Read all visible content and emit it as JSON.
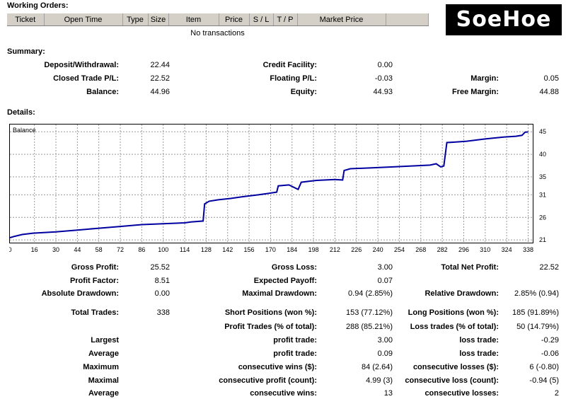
{
  "working_orders": {
    "title": "Working Orders:",
    "columns": [
      "Ticket",
      "Open Time",
      "Type",
      "Size",
      "Item",
      "Price",
      "S / L",
      "T / P",
      "Market Price",
      ""
    ],
    "empty_text": "No transactions"
  },
  "logo": {
    "text": "SoeHoe"
  },
  "summary": {
    "title": "Summary:",
    "deposit_label": "Deposit/Withdrawal:",
    "deposit_value": "22.44",
    "credit_label": "Credit Facility:",
    "credit_value": "0.00",
    "closed_label": "Closed Trade P/L:",
    "closed_value": "22.52",
    "floating_label": "Floating P/L:",
    "floating_value": "-0.03",
    "margin_label": "Margin:",
    "margin_value": "0.05",
    "balance_label": "Balance:",
    "balance_value": "44.96",
    "equity_label": "Equity:",
    "equity_value": "44.93",
    "free_margin_label": "Free Margin:",
    "free_margin_value": "44.88"
  },
  "details": {
    "title": "Details:"
  },
  "chart_data": {
    "type": "line",
    "title": "Balance",
    "series": [
      {
        "color": "#0000a0",
        "points": [
          [
            0,
            21.5
          ],
          [
            3,
            21.8
          ],
          [
            8,
            22.2
          ],
          [
            15,
            22.5
          ],
          [
            30,
            22.8
          ],
          [
            44,
            23.2
          ],
          [
            58,
            23.6
          ],
          [
            72,
            24.0
          ],
          [
            86,
            24.4
          ],
          [
            100,
            24.6
          ],
          [
            114,
            24.8
          ],
          [
            118,
            25.0
          ],
          [
            126,
            25.2
          ],
          [
            127,
            29.0
          ],
          [
            130,
            29.6
          ],
          [
            136,
            29.9
          ],
          [
            144,
            30.2
          ],
          [
            152,
            30.6
          ],
          [
            162,
            31.0
          ],
          [
            170,
            31.4
          ],
          [
            174,
            31.6
          ],
          [
            175,
            33.0
          ],
          [
            182,
            33.2
          ],
          [
            188,
            32.2
          ],
          [
            190,
            33.8
          ],
          [
            195,
            34.0
          ],
          [
            200,
            34.2
          ],
          [
            212,
            34.4
          ],
          [
            217,
            34.3
          ],
          [
            218,
            36.4
          ],
          [
            222,
            36.8
          ],
          [
            236,
            37.0
          ],
          [
            250,
            37.2
          ],
          [
            262,
            37.4
          ],
          [
            274,
            37.6
          ],
          [
            278,
            37.9
          ],
          [
            281,
            37.2
          ],
          [
            283,
            37.4
          ],
          [
            285,
            42.6
          ],
          [
            290,
            42.7
          ],
          [
            298,
            42.9
          ],
          [
            310,
            43.4
          ],
          [
            322,
            43.8
          ],
          [
            330,
            44.0
          ],
          [
            334,
            44.2
          ],
          [
            336,
            44.9
          ],
          [
            338,
            44.96
          ]
        ]
      }
    ],
    "x_ticks": [
      0,
      16,
      30,
      44,
      58,
      72,
      86,
      100,
      114,
      128,
      142,
      156,
      170,
      184,
      198,
      212,
      226,
      240,
      254,
      268,
      282,
      296,
      310,
      324,
      338
    ],
    "y_ticks": [
      21,
      26,
      31,
      35,
      40,
      45
    ],
    "xlim": [
      0,
      341
    ],
    "ylim": [
      20.4,
      46.6
    ],
    "grid": true
  },
  "stats": {
    "gross_profit_label": "Gross Profit:",
    "gross_profit_value": "25.52",
    "gross_loss_label": "Gross Loss:",
    "gross_loss_value": "3.00",
    "total_net_profit_label": "Total Net Profit:",
    "total_net_profit_value": "22.52",
    "profit_factor_label": "Profit Factor:",
    "profit_factor_value": "8.51",
    "expected_payoff_label": "Expected Payoff:",
    "expected_payoff_value": "0.07",
    "absolute_drawdown_label": "Absolute Drawdown:",
    "absolute_drawdown_value": "0.00",
    "maximal_drawdown_label": "Maximal Drawdown:",
    "maximal_drawdown_value": "0.94 (2.85%)",
    "relative_drawdown_label": "Relative Drawdown:",
    "relative_drawdown_value": "2.85% (0.94)",
    "total_trades_label": "Total Trades:",
    "total_trades_value": "338",
    "short_positions_label": "Short Positions (won %):",
    "short_positions_value": "153 (77.12%)",
    "long_positions_label": "Long Positions (won %):",
    "long_positions_value": "185 (91.89%)",
    "profit_trades_label": "Profit Trades (% of total):",
    "profit_trades_value": "288 (85.21%)",
    "loss_trades_label": "Loss trades (% of total):",
    "loss_trades_value": "50 (14.79%)",
    "largest_label": "Largest",
    "largest_profit_label": "profit trade:",
    "largest_profit_value": "3.00",
    "largest_loss_label": "loss trade:",
    "largest_loss_value": "-0.29",
    "average_label": "Average",
    "average_profit_label": "profit trade:",
    "average_profit_value": "0.09",
    "average_loss_label": "loss trade:",
    "average_loss_value": "-0.06",
    "maximum_label": "Maximum",
    "max_cons_wins_label": "consecutive wins ($):",
    "max_cons_wins_value": "84 (2.64)",
    "max_cons_losses_label": "consecutive losses ($):",
    "max_cons_losses_value": "6 (-0.80)",
    "maximal_label": "Maximal",
    "maximal_cons_profit_label": "consecutive profit (count):",
    "maximal_cons_profit_value": "4.99 (3)",
    "maximal_cons_loss_label": "consecutive loss (count):",
    "maximal_cons_loss_value": "-0.94 (5)",
    "average2_label": "Average",
    "avg_cons_wins_label": "consecutive wins:",
    "avg_cons_wins_value": "13",
    "avg_cons_losses_label": "consecutive losses:",
    "avg_cons_losses_value": "2"
  }
}
